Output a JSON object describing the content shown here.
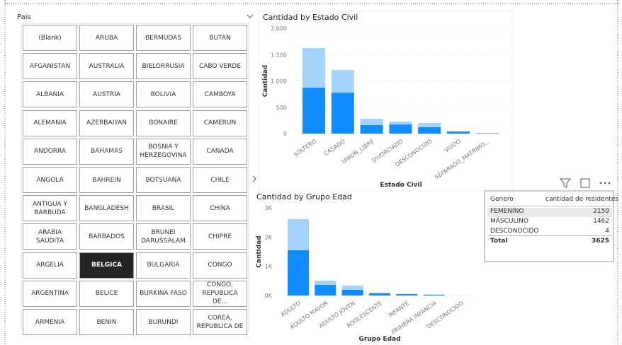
{
  "slicer": {
    "title": "Pais",
    "selected_index": 33,
    "items": [
      "(Blank)",
      "ARUBA",
      "BERMUDAS",
      "BUTAN",
      "AFGANISTAN",
      "AUSTRALIA",
      "BIELORRUSIA",
      "CABO VERDE",
      "ALBANIA",
      "AUSTRIA",
      "BOLIVIA",
      "CAMBOYA",
      "ALEMANIA",
      "AZERBAIYAN",
      "BONAIRE",
      "CAMERUN",
      "ANDORRA",
      "BAHAMAS",
      "BOSNIA Y HERZEGOVINA",
      "CANADA",
      "ANGOLA",
      "BAHREIN",
      "BOTSUANA",
      "CHILE",
      "ANTIGUA Y BARBUDA",
      "BANGLADESH",
      "BRASIL",
      "CHINA",
      "ARABIA SAUDITA",
      "BARBADOS",
      "BRUNEI DARUSSALAM",
      "CHIPRE",
      "ARGELIA",
      "BELGICA",
      "BULGARIA",
      "CONGO",
      "ARGENTINA",
      "BELICE",
      "BURKINA FASO",
      "CONGO, REPUBLICA DE...",
      "ARMENIA",
      "BENIN",
      "BURUNDI",
      "COREA, REPUBLICA DE"
    ]
  },
  "chart_data": [
    {
      "type": "bar",
      "stacked": true,
      "title": "Cantidad by Estado Civil",
      "x_label": "Estado Civil",
      "y_label": "Cantidad",
      "categories": [
        "SOLTERO",
        "CASADO",
        "UNION_LIBRE",
        "DIVORCIADO",
        "DESCONOCIDO",
        "VIUDO",
        "SEPARADO_MATRIMO..."
      ],
      "series": [
        {
          "color": "#118dff",
          "values": [
            872,
            778,
            161,
            174,
            121,
            40,
            8
          ]
        },
        {
          "color": "#a4d3fb",
          "values": [
            752,
            430,
            121,
            54,
            80,
            5,
            2
          ]
        }
      ],
      "ylim": [
        0,
        2000
      ],
      "yticks": [
        0,
        500,
        {
          "value": 1000,
          "label": "1.000"
        },
        {
          "value": 1500,
          "label": "1.500"
        },
        {
          "value": 2000,
          "label": "2.000"
        }
      ],
      "grid": true
    },
    {
      "type": "bar",
      "stacked": true,
      "title": "Cantidad by Grupo Edad",
      "x_label": "Grupo Edad",
      "y_label": "Cantidad",
      "categories": [
        "ADULTO",
        "ADULTO MAYOR",
        "ADULTO JOVEN",
        "ADOLESCENTE",
        "INFANTE",
        "PRIMERA INFANCIA",
        "DESCONOCIDO"
      ],
      "series": [
        {
          "color": "#118dff",
          "values": [
            1548,
            363,
            194,
            73,
            48,
            30,
            3
          ]
        },
        {
          "color": "#a4d3fb",
          "values": [
            1065,
            145,
            145,
            24,
            10,
            8,
            1
          ]
        }
      ],
      "ylim": [
        0,
        3000
      ],
      "yticks": [
        {
          "value": 0,
          "label": "0K"
        },
        {
          "value": 1000,
          "label": "1K"
        },
        {
          "value": 2000,
          "label": "2K"
        },
        {
          "value": 3000,
          "label": "3K"
        }
      ],
      "grid": false
    }
  ],
  "table": {
    "columns": [
      "Genero",
      "cantidad de residentes"
    ],
    "rows": [
      [
        "FEMENINO",
        "2159"
      ],
      [
        "MASCULINO",
        "1462"
      ],
      [
        "DESCONOCIDO",
        "4"
      ]
    ],
    "total": [
      "Total",
      "3625"
    ]
  }
}
